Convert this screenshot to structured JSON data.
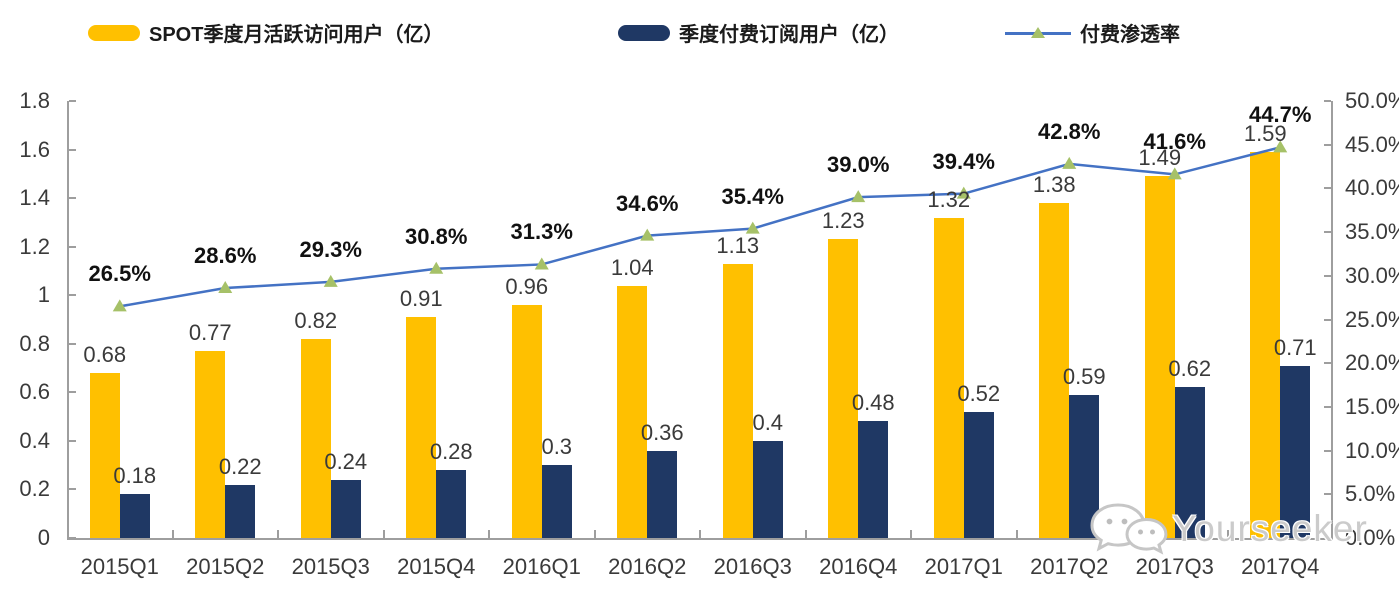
{
  "legend": {
    "items": [
      {
        "label": "SPOT季度月活跃访问用户（亿）",
        "type": "bar",
        "swatch_color": "#FFC000"
      },
      {
        "label": "季度付费订阅用户（亿）",
        "type": "bar",
        "swatch_color": "#1F3864"
      },
      {
        "label": "付费渗透率",
        "type": "line",
        "line_color": "#4472C4",
        "marker_color": "#A6C168"
      }
    ]
  },
  "chart_data": {
    "type": "bar",
    "subtype": "grouped-bars-with-line-overlay",
    "title": "",
    "legend_position": "top",
    "grid": false,
    "categories": [
      "2015Q1",
      "2015Q2",
      "2015Q3",
      "2015Q4",
      "2016Q1",
      "2016Q2",
      "2016Q3",
      "2016Q4",
      "2017Q1",
      "2017Q2",
      "2017Q3",
      "2017Q4"
    ],
    "series": [
      {
        "name": "SPOT季度月活跃访问用户（亿）",
        "type": "bar",
        "axis": "left",
        "color": "#FFC000",
        "values": [
          0.68,
          0.77,
          0.82,
          0.91,
          0.96,
          1.04,
          1.13,
          1.23,
          1.32,
          1.38,
          1.49,
          1.59
        ],
        "labels": [
          "0.68",
          "0.77",
          "0.82",
          "0.91",
          "0.96",
          "1.04",
          "1.13",
          "1.23",
          "1.32",
          "1.38",
          "1.49",
          "1.59"
        ]
      },
      {
        "name": "季度付费订阅用户（亿）",
        "type": "bar",
        "axis": "left",
        "color": "#1F3864",
        "values": [
          0.18,
          0.22,
          0.24,
          0.28,
          0.3,
          0.36,
          0.4,
          0.48,
          0.52,
          0.59,
          0.62,
          0.71
        ],
        "labels": [
          "0.18",
          "0.22",
          "0.24",
          "0.28",
          "0.3",
          "0.36",
          "0.4",
          "0.48",
          "0.52",
          "0.59",
          "0.62",
          "0.71"
        ]
      },
      {
        "name": "付费渗透率",
        "type": "line",
        "axis": "right",
        "color": "#4472C4",
        "marker": "triangle",
        "marker_color": "#A6C168",
        "values": [
          26.5,
          28.6,
          29.3,
          30.8,
          31.3,
          34.6,
          35.4,
          39.0,
          39.4,
          42.8,
          41.6,
          44.7
        ],
        "labels": [
          "26.5%",
          "28.6%",
          "29.3%",
          "30.8%",
          "31.3%",
          "34.6%",
          "35.4%",
          "39.0%",
          "39.4%",
          "42.8%",
          "41.6%",
          "44.7%"
        ]
      }
    ],
    "left_axis": {
      "min": 0,
      "max": 1.8,
      "step": 0.2,
      "tick_labels": [
        "1.8",
        "1.6",
        "1.4",
        "1.2",
        "1",
        "0.8",
        "0.6",
        "0.4",
        "0.2",
        "0"
      ]
    },
    "right_axis": {
      "min": 0,
      "max": 50,
      "step": 5,
      "tick_labels": [
        "50.0%",
        "45.0%",
        "40.0%",
        "35.0%",
        "30.0%",
        "25.0%",
        "20.0%",
        "15.0%",
        "10.0%",
        "5.0%",
        "0.0%"
      ]
    }
  },
  "watermark": {
    "text": "Yourseeker",
    "icon": "wechat-logo-icon"
  },
  "colors": {
    "bar_mau": "#FFC000",
    "bar_paid": "#1F3864",
    "line": "#4472C4",
    "marker": "#A6C168",
    "axis": "#9E9E9E",
    "tick_label": "#3A3A3A",
    "value_label": "#3A3A3A",
    "pct_label": "#111111",
    "watermark_text": "#CBCBCB"
  }
}
